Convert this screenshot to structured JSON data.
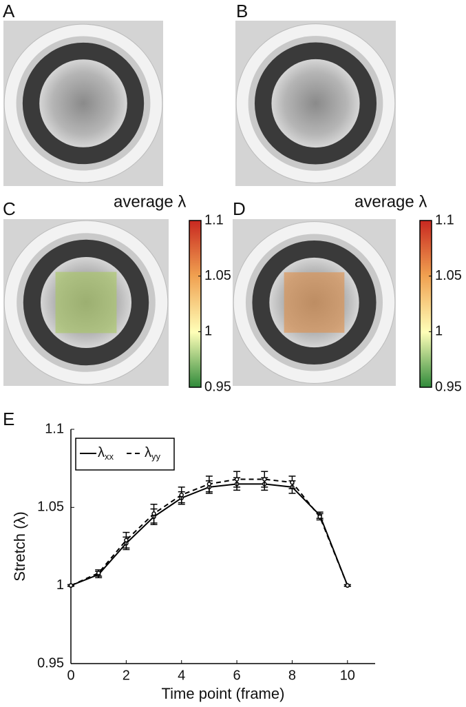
{
  "panel_labels": [
    "A",
    "B",
    "C",
    "D",
    "E"
  ],
  "colorbars": [
    {
      "title": "average λ",
      "lim": [
        0.95,
        1.1
      ],
      "ticks": [
        0.95,
        1,
        1.05,
        1.1
      ]
    },
    {
      "title": "average λ",
      "lim": [
        0.95,
        1.1
      ],
      "ticks": [
        0.95,
        1,
        1.05,
        1.1
      ]
    }
  ],
  "chart_data": {
    "type": "line",
    "x": [
      0,
      1,
      2,
      3,
      4,
      5,
      6,
      7,
      8,
      9,
      10
    ],
    "series": [
      {
        "name": "λxx",
        "color": "#000000",
        "dash": "solid",
        "values": [
          1.0,
          1.007,
          1.027,
          1.044,
          1.056,
          1.063,
          1.065,
          1.065,
          1.063,
          1.045,
          1.0
        ],
        "errors": [
          0.0005,
          0.002,
          0.004,
          0.005,
          0.004,
          0.004,
          0.004,
          0.004,
          0.004,
          0.002,
          0.0005
        ]
      },
      {
        "name": "λyy",
        "color": "#000000",
        "dash": "dashed",
        "values": [
          1.0,
          1.008,
          1.029,
          1.046,
          1.058,
          1.065,
          1.068,
          1.068,
          1.066,
          1.044,
          1.0
        ],
        "errors": [
          0.0005,
          0.002,
          0.005,
          0.006,
          0.005,
          0.005,
          0.005,
          0.005,
          0.004,
          0.002,
          0.0005
        ]
      }
    ],
    "xlabel": "Time point (frame)",
    "ylabel": "Stretch (λ)",
    "xlim": [
      0,
      11
    ],
    "xticks": [
      0,
      2,
      4,
      6,
      8,
      10
    ],
    "ylim": [
      0.95,
      1.1
    ],
    "yticks": [
      0.95,
      1,
      1.05,
      1.1
    ],
    "legend": "upper left"
  }
}
